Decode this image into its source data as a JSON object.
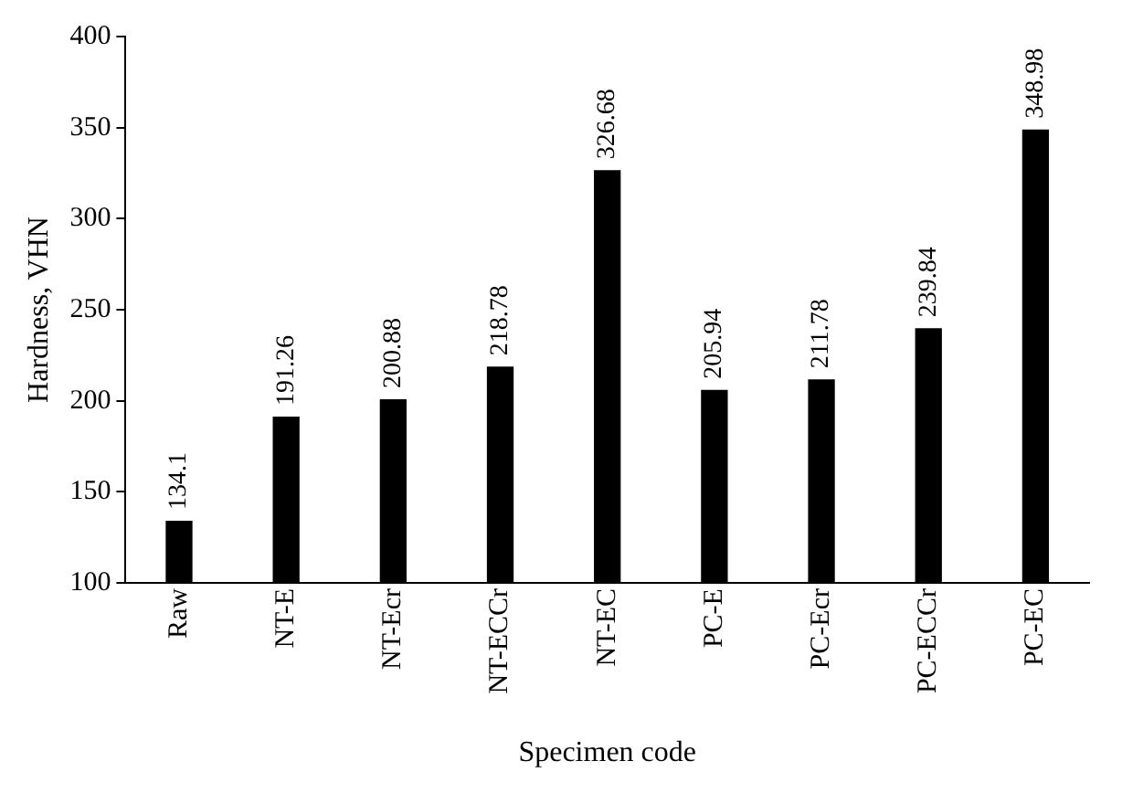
{
  "chart_data": {
    "type": "bar",
    "xlabel": "Specimen code",
    "ylabel": "Hardness, VHN",
    "categories": [
      "Raw",
      "NT-E",
      "NT-Ecr",
      "NT-ECCr",
      "NT-EC",
      "PC-E",
      "PC-Ecr",
      "PC-ECCr",
      "PC-EC"
    ],
    "values": [
      134.1,
      191.26,
      200.88,
      218.78,
      326.68,
      205.94,
      211.78,
      239.84,
      348.98
    ],
    "color": "#000000",
    "ylim": [
      100,
      400
    ],
    "yticks": [
      100,
      150,
      200,
      250,
      300,
      350,
      400
    ],
    "grid": false,
    "legend": false,
    "data_labels": true
  }
}
